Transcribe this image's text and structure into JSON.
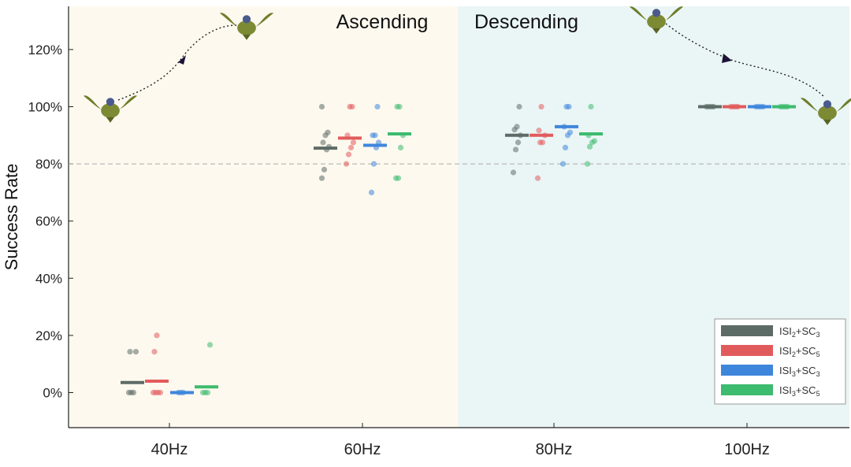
{
  "chart_data": {
    "type": "scatter",
    "title": "",
    "xlabel": "",
    "ylabel": "Success Rate",
    "ylim": [
      -0.12,
      1.35
    ],
    "y_ticks": [
      0,
      0.2,
      0.4,
      0.6,
      0.8,
      1.0,
      1.2
    ],
    "y_tick_labels": [
      "0%",
      "20%",
      "40%",
      "60%",
      "80%",
      "100%",
      "120%"
    ],
    "reference_line": 0.8,
    "categories": [
      "40Hz",
      "60Hz",
      "80Hz",
      "100Hz"
    ],
    "regions": [
      {
        "label": "Ascending",
        "color": "#fdf9ef",
        "categories": [
          "40Hz",
          "60Hz"
        ]
      },
      {
        "label": "Descending",
        "color": "#eaf5f5",
        "categories": [
          "80Hz",
          "100Hz"
        ]
      }
    ],
    "legend_position": "bottom-right",
    "series": [
      {
        "name": "ISI2+SC3",
        "base": "ISI",
        "sub1": "2",
        "mid": "+SC",
        "sub2": "3",
        "color": "#5d6b66",
        "means": [
          0.035,
          0.855,
          0.9,
          1.0
        ],
        "points": [
          [
            0,
            0,
            0,
            0.143,
            0.143
          ],
          [
            0.75,
            0.78,
            0.85,
            0.86,
            0.875,
            0.9,
            0.91,
            1.0
          ],
          [
            0.77,
            0.85,
            0.875,
            0.9,
            0.92,
            0.93,
            1.0
          ],
          [
            1.0,
            1.0,
            1.0,
            1.0
          ]
        ]
      },
      {
        "name": "ISI2+SC5",
        "base": "ISI",
        "sub1": "2",
        "mid": "+SC",
        "sub2": "5",
        "color": "#e25b5c",
        "means": [
          0.04,
          0.89,
          0.9,
          1.0
        ],
        "points": [
          [
            0,
            0,
            0,
            0,
            0.143,
            0.2
          ],
          [
            0.8,
            0.833,
            0.857,
            0.875,
            0.9,
            1.0,
            1.0
          ],
          [
            0.75,
            0.875,
            0.875,
            0.9,
            0.917,
            1.0
          ],
          [
            1.0,
            1.0,
            1.0,
            1.0
          ]
        ]
      },
      {
        "name": "ISI3+SC3",
        "base": "ISI",
        "sub1": "3",
        "mid": "+SC",
        "sub2": "3",
        "color": "#3e86dc",
        "means": [
          0.0,
          0.865,
          0.93,
          1.0
        ],
        "points": [
          [
            0,
            0,
            0
          ],
          [
            0.7,
            0.8,
            0.857,
            0.875,
            0.9,
            0.9,
            1.0
          ],
          [
            0.8,
            0.857,
            0.9,
            0.91,
            0.93,
            1.0,
            1.0
          ],
          [
            1.0,
            1.0,
            1.0,
            1.0
          ]
        ]
      },
      {
        "name": "ISI3+SC5",
        "base": "ISI",
        "sub1": "3",
        "mid": "+SC",
        "sub2": "5",
        "color": "#3dbb6e",
        "means": [
          0.02,
          0.905,
          0.905,
          1.0
        ],
        "points": [
          [
            0,
            0,
            0,
            0.167
          ],
          [
            0.75,
            0.75,
            0.857,
            0.9,
            1.0,
            1.0
          ],
          [
            0.8,
            0.86,
            0.875,
            0.88,
            0.9,
            1.0
          ],
          [
            1.0,
            1.0,
            1.0,
            1.0
          ]
        ]
      }
    ]
  }
}
